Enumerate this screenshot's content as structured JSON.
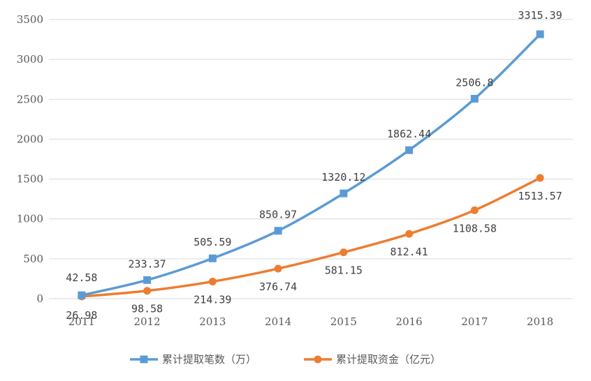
{
  "chart_data": {
    "type": "line",
    "categories": [
      "2011",
      "2012",
      "2013",
      "2014",
      "2015",
      "2016",
      "2017",
      "2018"
    ],
    "series": [
      {
        "name": "累计提取笔数（万）",
        "color": "#5b9bd5",
        "marker": "square",
        "values": [
          42.58,
          233.37,
          505.59,
          850.97,
          1320.12,
          1862.44,
          2506.8,
          3315.39
        ],
        "labels": [
          "42.58",
          "233.37",
          "505.59",
          "850.97",
          "1320.12",
          "1862.44",
          "2506.8",
          "3315.39"
        ]
      },
      {
        "name": "累计提取资金（亿元）",
        "color": "#ed7d31",
        "marker": "circle",
        "values": [
          26.98,
          98.58,
          214.39,
          376.74,
          581.15,
          812.41,
          1108.58,
          1513.57
        ],
        "labels": [
          "26.98",
          "98.58",
          "214.39",
          "376.74",
          "581.15",
          "812.41",
          "1108.58",
          "1513.57"
        ]
      }
    ],
    "ylim": [
      0,
      3500
    ],
    "yticks": [
      "0",
      "500",
      "1000",
      "1500",
      "2000",
      "2500",
      "3000",
      "3500"
    ],
    "grid": true,
    "legend": "bottom"
  }
}
